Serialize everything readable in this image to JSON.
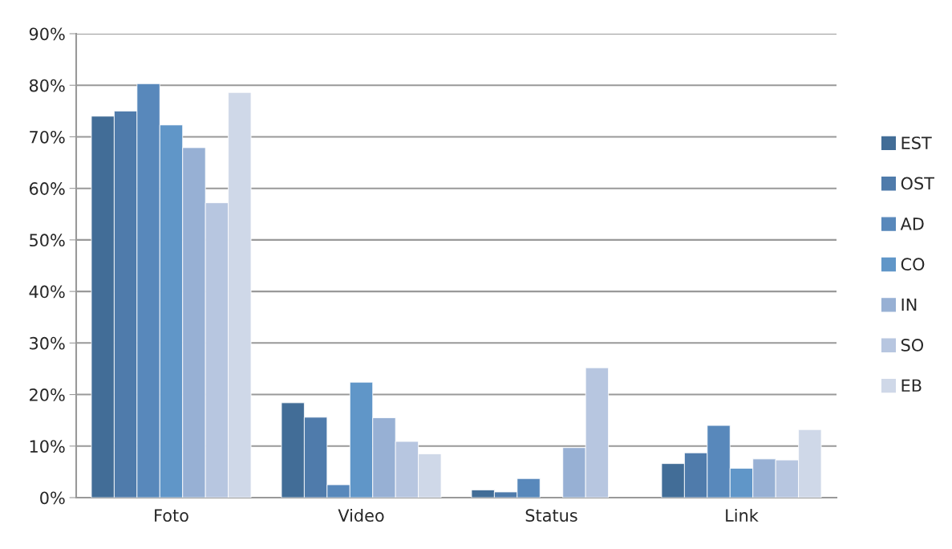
{
  "chart_data": {
    "type": "bar",
    "categories": [
      "Foto",
      "Video",
      "Status",
      "Link"
    ],
    "series": [
      {
        "name": "EST",
        "color": "#426d97",
        "values": [
          74,
          18.4,
          1.5,
          6.6
        ]
      },
      {
        "name": "OST",
        "color": "#4f7bab",
        "values": [
          75,
          15.6,
          1.1,
          8.7
        ]
      },
      {
        "name": "AD",
        "color": "#5888bb",
        "values": [
          80.3,
          2.5,
          3.7,
          14
        ]
      },
      {
        "name": "CO",
        "color": "#6096c8",
        "values": [
          72.3,
          22.4,
          null,
          5.7
        ]
      },
      {
        "name": "IN",
        "color": "#97b0d4",
        "values": [
          67.9,
          15.5,
          9.7,
          7.5
        ]
      },
      {
        "name": "SO",
        "color": "#b7c6e0",
        "values": [
          57.2,
          10.9,
          25.2,
          7.3
        ]
      },
      {
        "name": "EB",
        "color": "#cfd8e8",
        "values": [
          78.6,
          8.5,
          null,
          13.2
        ]
      }
    ],
    "ylim": [
      0,
      90
    ],
    "yticks": [
      {
        "value": 0,
        "label": "0%"
      },
      {
        "value": 10,
        "label": "10%"
      },
      {
        "value": 20,
        "label": "20%"
      },
      {
        "value": 30,
        "label": "30%"
      },
      {
        "value": 40,
        "label": "40%"
      },
      {
        "value": 50,
        "label": "50%"
      },
      {
        "value": 60,
        "label": "60%"
      },
      {
        "value": 70,
        "label": "70%"
      },
      {
        "value": 80,
        "label": "80%"
      },
      {
        "value": 90,
        "label": "90%"
      }
    ],
    "grid": "y",
    "legend": "right"
  }
}
